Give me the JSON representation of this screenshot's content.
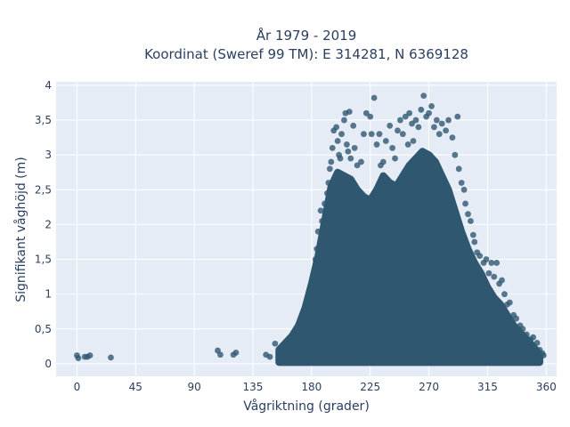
{
  "chart_data": {
    "type": "scatter",
    "title": "År 1979 - 2019",
    "subtitle": "Koordinat (Sweref 99 TM): E 314281, N 6369128",
    "xlabel": "Vågriktning (grader)",
    "ylabel": "Signifikant våghöjd (m)",
    "xlim": [
      -16,
      368
    ],
    "ylim": [
      -0.18,
      4.05
    ],
    "xticks": [
      0,
      45,
      90,
      135,
      180,
      225,
      270,
      315,
      360
    ],
    "xtick_labels": [
      "0",
      "45",
      "90",
      "135",
      "180",
      "225",
      "270",
      "315",
      "360"
    ],
    "yticks": [
      0,
      0.5,
      1,
      1.5,
      2,
      2.5,
      3,
      3.5,
      4
    ],
    "ytick_labels": [
      "0",
      "0,5",
      "1",
      "1,5",
      "2",
      "2,5",
      "3",
      "3,5",
      "4"
    ],
    "grid": true,
    "colors": {
      "marker": "#2f5770",
      "plot_bg": "#e5ecf6",
      "grid": "#ffffff",
      "text": "#2a3f5f"
    },
    "envelope": {
      "x": [
        155,
        160,
        165,
        170,
        175,
        180,
        185,
        190,
        195,
        200,
        205,
        210,
        215,
        220,
        225,
        230,
        235,
        240,
        245,
        250,
        255,
        260,
        265,
        270,
        275,
        280,
        285,
        290,
        295,
        300,
        305,
        310,
        315,
        320,
        325,
        330,
        335,
        340,
        345,
        350,
        355
      ],
      "max_y": [
        0.2,
        0.3,
        0.4,
        0.55,
        0.8,
        1.15,
        1.55,
        2.05,
        2.55,
        2.75,
        2.7,
        2.65,
        2.5,
        2.4,
        2.35,
        2.5,
        2.7,
        2.6,
        2.55,
        2.7,
        2.85,
        2.95,
        3.05,
        3.0,
        2.9,
        2.7,
        2.5,
        2.2,
        1.9,
        1.65,
        1.45,
        1.3,
        1.1,
        0.95,
        0.85,
        0.7,
        0.55,
        0.45,
        0.35,
        0.25,
        0.12
      ]
    },
    "points": [
      {
        "x": 0,
        "y": 0.12
      },
      {
        "x": 1,
        "y": 0.08
      },
      {
        "x": 6,
        "y": 0.1
      },
      {
        "x": 8,
        "y": 0.1
      },
      {
        "x": 10,
        "y": 0.12
      },
      {
        "x": 26,
        "y": 0.09
      },
      {
        "x": 108,
        "y": 0.19
      },
      {
        "x": 110,
        "y": 0.13
      },
      {
        "x": 120,
        "y": 0.13
      },
      {
        "x": 122,
        "y": 0.16
      },
      {
        "x": 145,
        "y": 0.13
      },
      {
        "x": 148,
        "y": 0.1
      },
      {
        "x": 152,
        "y": 0.29
      },
      {
        "x": 155,
        "y": 0.18
      },
      {
        "x": 160,
        "y": 0.3
      },
      {
        "x": 165,
        "y": 0.28
      },
      {
        "x": 168,
        "y": 0.4
      },
      {
        "x": 172,
        "y": 0.5
      },
      {
        "x": 174,
        "y": 0.62
      },
      {
        "x": 176,
        "y": 0.75
      },
      {
        "x": 177,
        "y": 0.88
      },
      {
        "x": 180,
        "y": 1.05
      },
      {
        "x": 182,
        "y": 1.2
      },
      {
        "x": 183,
        "y": 1.5
      },
      {
        "x": 184,
        "y": 1.65
      },
      {
        "x": 185,
        "y": 1.9
      },
      {
        "x": 187,
        "y": 2.2
      },
      {
        "x": 188,
        "y": 2.05
      },
      {
        "x": 190,
        "y": 2.3
      },
      {
        "x": 192,
        "y": 2.45
      },
      {
        "x": 193,
        "y": 2.6
      },
      {
        "x": 194,
        "y": 2.8
      },
      {
        "x": 195,
        "y": 2.9
      },
      {
        "x": 196,
        "y": 3.1
      },
      {
        "x": 197,
        "y": 3.35
      },
      {
        "x": 199,
        "y": 3.4
      },
      {
        "x": 200,
        "y": 3.2
      },
      {
        "x": 201,
        "y": 3.0
      },
      {
        "x": 202,
        "y": 2.95
      },
      {
        "x": 203,
        "y": 3.3
      },
      {
        "x": 205,
        "y": 3.5
      },
      {
        "x": 206,
        "y": 3.6
      },
      {
        "x": 207,
        "y": 3.15
      },
      {
        "x": 208,
        "y": 3.05
      },
      {
        "x": 209,
        "y": 3.62
      },
      {
        "x": 210,
        "y": 2.95
      },
      {
        "x": 212,
        "y": 3.42
      },
      {
        "x": 213,
        "y": 3.1
      },
      {
        "x": 215,
        "y": 2.85
      },
      {
        "x": 218,
        "y": 2.9
      },
      {
        "x": 220,
        "y": 3.3
      },
      {
        "x": 222,
        "y": 3.6
      },
      {
        "x": 225,
        "y": 3.55
      },
      {
        "x": 226,
        "y": 3.3
      },
      {
        "x": 228,
        "y": 3.82
      },
      {
        "x": 230,
        "y": 3.15
      },
      {
        "x": 232,
        "y": 3.3
      },
      {
        "x": 233,
        "y": 2.85
      },
      {
        "x": 235,
        "y": 2.9
      },
      {
        "x": 237,
        "y": 3.2
      },
      {
        "x": 240,
        "y": 3.42
      },
      {
        "x": 242,
        "y": 3.1
      },
      {
        "x": 244,
        "y": 2.95
      },
      {
        "x": 246,
        "y": 3.35
      },
      {
        "x": 248,
        "y": 3.5
      },
      {
        "x": 250,
        "y": 3.3
      },
      {
        "x": 252,
        "y": 3.55
      },
      {
        "x": 254,
        "y": 3.15
      },
      {
        "x": 255,
        "y": 3.6
      },
      {
        "x": 257,
        "y": 3.45
      },
      {
        "x": 258,
        "y": 3.2
      },
      {
        "x": 260,
        "y": 3.5
      },
      {
        "x": 262,
        "y": 3.4
      },
      {
        "x": 264,
        "y": 3.65
      },
      {
        "x": 266,
        "y": 3.85
      },
      {
        "x": 268,
        "y": 3.55
      },
      {
        "x": 270,
        "y": 3.6
      },
      {
        "x": 272,
        "y": 3.7
      },
      {
        "x": 274,
        "y": 3.4
      },
      {
        "x": 276,
        "y": 3.5
      },
      {
        "x": 278,
        "y": 3.3
      },
      {
        "x": 280,
        "y": 3.45
      },
      {
        "x": 283,
        "y": 3.35
      },
      {
        "x": 285,
        "y": 3.5
      },
      {
        "x": 288,
        "y": 3.25
      },
      {
        "x": 290,
        "y": 3.0
      },
      {
        "x": 292,
        "y": 3.55
      },
      {
        "x": 293,
        "y": 2.8
      },
      {
        "x": 295,
        "y": 2.6
      },
      {
        "x": 297,
        "y": 2.5
      },
      {
        "x": 298,
        "y": 2.3
      },
      {
        "x": 300,
        "y": 2.15
      },
      {
        "x": 302,
        "y": 2.05
      },
      {
        "x": 304,
        "y": 1.85
      },
      {
        "x": 305,
        "y": 1.75
      },
      {
        "x": 307,
        "y": 1.6
      },
      {
        "x": 309,
        "y": 1.55
      },
      {
        "x": 312,
        "y": 1.45
      },
      {
        "x": 314,
        "y": 1.5
      },
      {
        "x": 316,
        "y": 1.3
      },
      {
        "x": 318,
        "y": 1.45
      },
      {
        "x": 320,
        "y": 1.25
      },
      {
        "x": 322,
        "y": 1.45
      },
      {
        "x": 324,
        "y": 1.15
      },
      {
        "x": 326,
        "y": 1.2
      },
      {
        "x": 328,
        "y": 1.0
      },
      {
        "x": 330,
        "y": 0.85
      },
      {
        "x": 332,
        "y": 0.88
      },
      {
        "x": 335,
        "y": 0.7
      },
      {
        "x": 337,
        "y": 0.65
      },
      {
        "x": 340,
        "y": 0.55
      },
      {
        "x": 342,
        "y": 0.5
      },
      {
        "x": 345,
        "y": 0.42
      },
      {
        "x": 348,
        "y": 0.35
      },
      {
        "x": 350,
        "y": 0.38
      },
      {
        "x": 353,
        "y": 0.3
      },
      {
        "x": 355,
        "y": 0.2
      },
      {
        "x": 357,
        "y": 0.15
      },
      {
        "x": 358,
        "y": 0.12
      }
    ]
  }
}
